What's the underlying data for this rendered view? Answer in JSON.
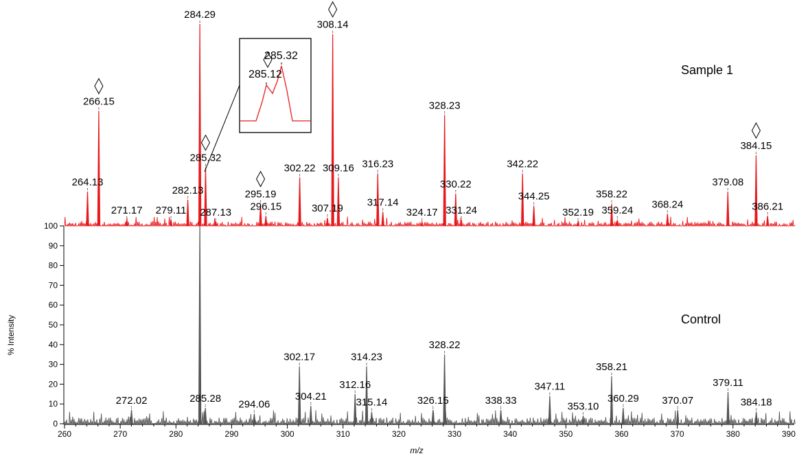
{
  "chart_data": {
    "type": "line",
    "xlabel": "m/z",
    "ylabel": "% Intensity",
    "xlim": [
      260,
      391
    ],
    "ylim": [
      0,
      100
    ],
    "x_ticks": [
      260,
      270,
      280,
      290,
      300,
      310,
      320,
      330,
      340,
      350,
      360,
      370,
      380,
      390
    ],
    "y_ticks": [
      0,
      10,
      20,
      30,
      40,
      50,
      60,
      70,
      80,
      90,
      100
    ],
    "colors": {
      "sample": "#e8191c",
      "control": "#555555",
      "axis": "#000000"
    },
    "series": [
      {
        "name": "Sample 1",
        "color": "#e8191c",
        "offset_y": 100,
        "marker_icon": "diamond-icon",
        "peaks": [
          {
            "x": 264.13,
            "y": 17,
            "label": "264.13"
          },
          {
            "x": 266.15,
            "y": 57,
            "label": "266.15",
            "marker": true
          },
          {
            "x": 271.17,
            "y": 3,
            "label": "271.17"
          },
          {
            "x": 279.11,
            "y": 3,
            "label": "279.11"
          },
          {
            "x": 282.13,
            "y": 13,
            "label": "282.13"
          },
          {
            "x": 284.29,
            "y": 100,
            "label": "284.29"
          },
          {
            "x": 285.32,
            "y": 29,
            "label": "285.32",
            "marker": true
          },
          {
            "x": 287.13,
            "y": 2,
            "label": "287.13"
          },
          {
            "x": 295.19,
            "y": 11,
            "label": "295.19",
            "marker": true
          },
          {
            "x": 296.15,
            "y": 5,
            "label": "296.15"
          },
          {
            "x": 302.22,
            "y": 24,
            "label": "302.22"
          },
          {
            "x": 307.19,
            "y": 4,
            "label": "307.19"
          },
          {
            "x": 308.14,
            "y": 95,
            "label": "308.14",
            "marker": true
          },
          {
            "x": 309.16,
            "y": 24,
            "label": "309.16"
          },
          {
            "x": 316.23,
            "y": 26,
            "label": "316.23"
          },
          {
            "x": 317.14,
            "y": 7,
            "label": "317.14"
          },
          {
            "x": 324.17,
            "y": 2,
            "label": "324.17"
          },
          {
            "x": 328.23,
            "y": 55,
            "label": "328.23"
          },
          {
            "x": 330.22,
            "y": 16,
            "label": "330.22"
          },
          {
            "x": 331.24,
            "y": 3,
            "label": "331.24"
          },
          {
            "x": 342.22,
            "y": 26,
            "label": "342.22"
          },
          {
            "x": 344.25,
            "y": 10,
            "label": "344.25"
          },
          {
            "x": 352.19,
            "y": 2,
            "label": "352.19"
          },
          {
            "x": 358.22,
            "y": 11,
            "label": "358.22"
          },
          {
            "x": 359.24,
            "y": 3,
            "label": "359.24"
          },
          {
            "x": 368.24,
            "y": 6,
            "label": "368.24"
          },
          {
            "x": 379.08,
            "y": 17,
            "label": "379.08"
          },
          {
            "x": 384.15,
            "y": 35,
            "label": "384.15",
            "marker": true
          },
          {
            "x": 386.21,
            "y": 5,
            "label": "386.21"
          }
        ]
      },
      {
        "name": "Control",
        "color": "#555555",
        "offset_y": 0,
        "peaks": [
          {
            "x": 272.02,
            "y": 7,
            "label": "272.02"
          },
          {
            "x": 284.29,
            "y": 100
          },
          {
            "x": 285.28,
            "y": 8,
            "label": "285.28"
          },
          {
            "x": 294.06,
            "y": 5,
            "label": "294.06"
          },
          {
            "x": 302.17,
            "y": 29,
            "label": "302.17"
          },
          {
            "x": 304.21,
            "y": 9,
            "label": "304.21"
          },
          {
            "x": 312.16,
            "y": 15,
            "label": "312.16"
          },
          {
            "x": 314.23,
            "y": 29,
            "label": "314.23"
          },
          {
            "x": 315.14,
            "y": 6,
            "label": "315.14"
          },
          {
            "x": 326.15,
            "y": 7,
            "label": "326.15"
          },
          {
            "x": 328.22,
            "y": 35,
            "label": "328.22"
          },
          {
            "x": 338.33,
            "y": 7,
            "label": "338.33"
          },
          {
            "x": 347.11,
            "y": 14,
            "label": "347.11"
          },
          {
            "x": 353.1,
            "y": 4,
            "label": "353.10"
          },
          {
            "x": 358.21,
            "y": 24,
            "label": "358.21"
          },
          {
            "x": 360.29,
            "y": 8,
            "label": "360.29"
          },
          {
            "x": 370.07,
            "y": 7,
            "label": "370.07"
          },
          {
            "x": 379.11,
            "y": 16,
            "label": "379.11"
          },
          {
            "x": 384.18,
            "y": 6,
            "label": "384.18"
          }
        ]
      }
    ],
    "inset": {
      "labels": [
        "285.12",
        "285.32"
      ],
      "marker_icon": "diamond-icon"
    }
  }
}
